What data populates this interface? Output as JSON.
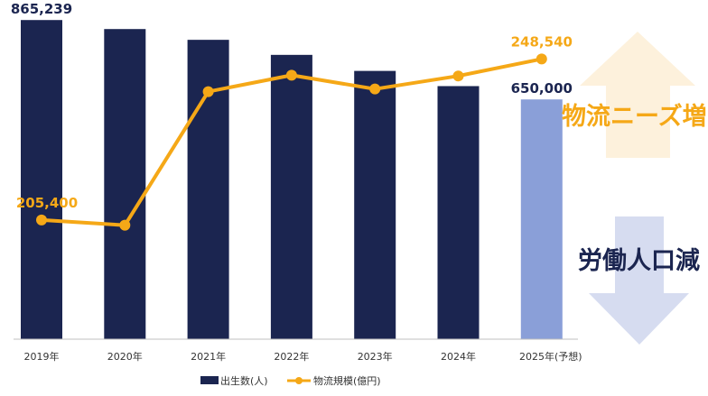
{
  "chart_data": {
    "type": "bar",
    "categories": [
      "2019年",
      "2020年",
      "2021年",
      "2022年",
      "2023年",
      "2024年",
      "2025年(予想)"
    ],
    "series": [
      {
        "name": "出生数(人)",
        "type": "bar",
        "values": [
          865239,
          840800,
          811600,
          770800,
          727300,
          686100,
          650000
        ],
        "color": "#1b2550",
        "last_color": "#8a9fd8",
        "labels": [
          "865,239",
          "",
          "",
          "",
          "",
          "",
          "650,000"
        ],
        "ylim": [
          0,
          900000
        ]
      },
      {
        "name": "物流規模(億円)",
        "type": "line",
        "values": [
          205400,
          204000,
          239800,
          244200,
          240500,
          244000,
          248540
        ],
        "color": "#f5a817",
        "labels": [
          "205,400",
          "",
          "",
          "",
          "",
          "",
          "248,540"
        ],
        "ylim": [
          187000,
          251300
        ]
      }
    ],
    "legend_position": "bottom",
    "grid": false,
    "annotations": {
      "up_text": "物流ニーズ増",
      "up_color": "#f5a817",
      "up_arrow_color": "#fdf1dc",
      "down_text": "労働人口減",
      "down_color": "#1b2550",
      "down_arrow_color": "#d6dcf0"
    }
  }
}
